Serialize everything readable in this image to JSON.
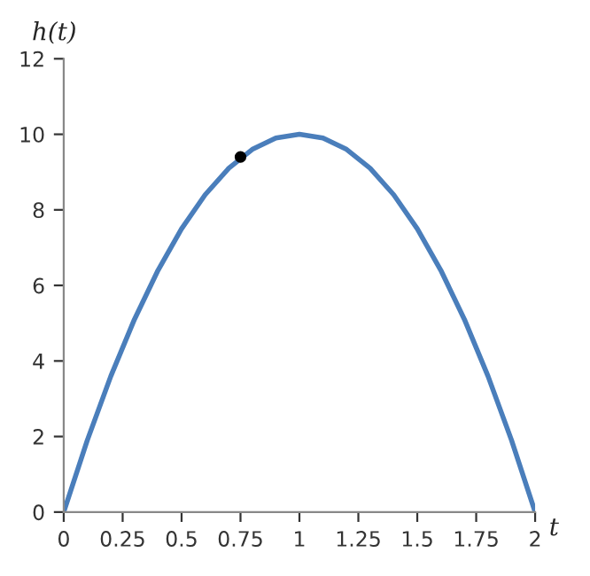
{
  "chart_data": {
    "type": "line",
    "xlabel": "t",
    "ylabel": "h(t)",
    "xlim": [
      0,
      2
    ],
    "ylim": [
      0,
      12
    ],
    "xticks": [
      0,
      0.25,
      0.5,
      0.75,
      1,
      1.25,
      1.5,
      1.75,
      2
    ],
    "yticks": [
      0,
      2,
      4,
      6,
      8,
      10,
      12
    ],
    "grid": false,
    "legend": false,
    "series": [
      {
        "color": "#4a7ebb",
        "marker": "none",
        "x": [
          0,
          0.1,
          0.2,
          0.3,
          0.4,
          0.5,
          0.6,
          0.7,
          0.8,
          0.9,
          1,
          1.1,
          1.2,
          1.3,
          1.4,
          1.5,
          1.6,
          1.7,
          1.8,
          1.9,
          2
        ],
        "values": [
          0,
          1.9,
          3.6,
          5.1,
          6.4,
          7.5,
          8.4,
          9.1,
          9.6,
          9.9,
          10,
          9.9,
          9.6,
          9.1,
          8.4,
          7.5,
          6.4,
          5.1,
          3.6,
          1.9,
          0
        ]
      },
      {
        "type": "scatter",
        "color": "#000000",
        "marker": "circle",
        "x": [
          0.75
        ],
        "values": [
          9.4
        ]
      }
    ]
  }
}
